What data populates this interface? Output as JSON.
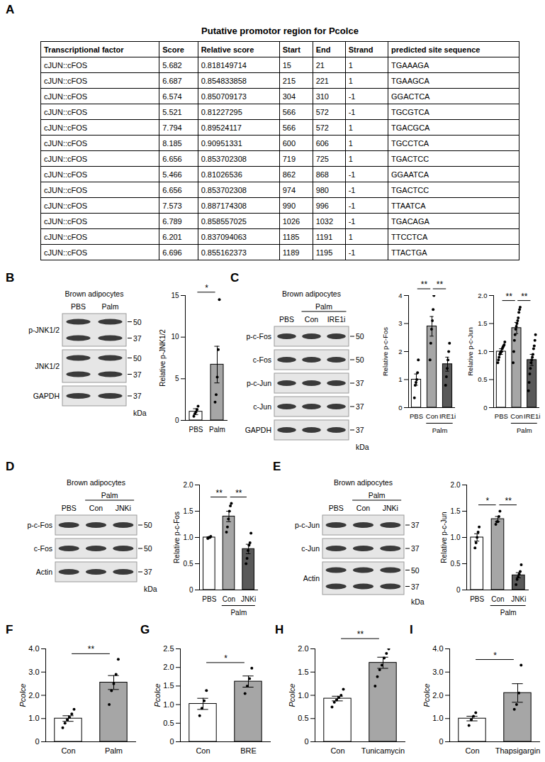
{
  "panel_a": {
    "panel": "A",
    "title": "Putative promotor region for Pcolce",
    "columns": [
      "Transcriptional factor",
      "Score",
      "Relative score",
      "Start",
      "End",
      "Strand",
      "predicted site sequence"
    ],
    "rows": [
      [
        "cJUN::cFOS",
        5.682,
        0.818149714,
        15,
        21,
        1,
        "TGAAAGA"
      ],
      [
        "cJUN::cFOS",
        6.687,
        0.854833858,
        215,
        221,
        1,
        "TGAAGCA"
      ],
      [
        "cJUN::cFOS",
        6.574,
        0.850709173,
        304,
        310,
        -1,
        "GGACTCA"
      ],
      [
        "cJUN::cFOS",
        5.521,
        0.81227295,
        566,
        572,
        -1,
        "TGCGTCA"
      ],
      [
        "cJUN::cFOS",
        7.794,
        0.89524117,
        566,
        572,
        1,
        "TGACGCA"
      ],
      [
        "cJUN::cFOS",
        8.185,
        0.90951331,
        600,
        606,
        1,
        "TGCCTCA"
      ],
      [
        "cJUN::cFOS",
        6.656,
        0.853702308,
        719,
        725,
        1,
        "TGACTCC"
      ],
      [
        "cJUN::cFOS",
        5.466,
        0.81026536,
        862,
        868,
        -1,
        "GGAATCA"
      ],
      [
        "cJUN::cFOS",
        6.656,
        0.853702308,
        974,
        980,
        -1,
        "TGACTCC"
      ],
      [
        "cJUN::cFOS",
        7.573,
        0.887174308,
        990,
        996,
        -1,
        "TTAATCA"
      ],
      [
        "cJUN::cFOS",
        6.789,
        0.858557025,
        1026,
        1032,
        -1,
        "TGACAGA"
      ],
      [
        "cJUN::cFOS",
        6.201,
        0.837094063,
        1185,
        1191,
        1,
        "TTCCTCA"
      ],
      [
        "cJUN::cFOS",
        6.696,
        0.855162373,
        1189,
        1195,
        -1,
        "TTACTGA"
      ]
    ]
  },
  "blots": [
    {
      "panel": "B",
      "cell_label": "Brown adipocytes",
      "lanes": [
        "PBS",
        "Palm"
      ],
      "unit": "kDa",
      "rows": [
        {
          "label": "p-JNK1/2",
          "markers": [
            50,
            37
          ]
        },
        {
          "label": "JNK1/2",
          "markers": [
            50,
            37
          ]
        },
        {
          "label": "GAPDH",
          "markers": [
            37
          ]
        }
      ]
    },
    {
      "panel": "C",
      "cell_label": "Brown adipocytes",
      "lanes": [
        "PBS",
        "Con",
        "IRE1i"
      ],
      "lane_group": {
        "label": "Palm",
        "lanes": [
          "Con",
          "IRE1i"
        ]
      },
      "unit": "kDa",
      "rows": [
        {
          "label": "p-c-Fos",
          "markers": [
            50
          ]
        },
        {
          "label": "c-Fos",
          "markers": [
            50
          ]
        },
        {
          "label": "p-c-Jun",
          "markers": [
            37
          ]
        },
        {
          "label": "c-Jun",
          "markers": [
            37
          ]
        },
        {
          "label": "GAPDH",
          "markers": [
            37
          ]
        }
      ]
    },
    {
      "panel": "D",
      "cell_label": "Brown adipocytes",
      "lanes": [
        "PBS",
        "Con",
        "JNKi"
      ],
      "lane_group": {
        "label": "Palm",
        "lanes": [
          "Con",
          "JNKi"
        ]
      },
      "unit": "kDa",
      "rows": [
        {
          "label": "p-c-Fos",
          "markers": [
            50
          ]
        },
        {
          "label": "c-Fos",
          "markers": [
            50
          ]
        },
        {
          "label": "Actin",
          "markers": [
            37
          ]
        }
      ]
    },
    {
      "panel": "E",
      "cell_label": "Brown adipocytes",
      "lanes": [
        "PBS",
        "Con",
        "JNKi"
      ],
      "lane_group": {
        "label": "Palm",
        "lanes": [
          "Con",
          "JNKi"
        ]
      },
      "unit": "kDa",
      "rows": [
        {
          "label": "p-c-Jun",
          "markers": [
            37
          ]
        },
        {
          "label": "c-Jun",
          "markers": [
            37
          ]
        },
        {
          "label": "Actin",
          "markers": [
            50,
            37
          ]
        }
      ]
    }
  ],
  "chart_data": [
    {
      "type": "bar",
      "ylabel": "Relative p-JNK1/2",
      "categories": [
        "PBS",
        "Palm"
      ],
      "values": [
        1.05,
        6.7
      ],
      "errors": [
        0.35,
        2.2
      ],
      "points": [
        [
          0.5,
          0.8,
          1.0,
          1.3,
          1.7
        ],
        [
          2.2,
          3.1,
          5.2,
          8.5,
          14.5
        ]
      ],
      "colors": [
        "#ffffff",
        "#a6a6a6"
      ],
      "ylim": [
        0,
        15
      ],
      "yticks": [
        0,
        5,
        10,
        15
      ],
      "significance": [
        {
          "from": "PBS",
          "to": "Palm",
          "label": "*"
        }
      ]
    },
    {
      "type": "bar",
      "ylabel": "Relative p-c-Fos",
      "categories": [
        "PBS",
        "Con",
        "IRE1i"
      ],
      "values": [
        1.0,
        2.9,
        1.55
      ],
      "errors": [
        0.2,
        0.35,
        0.25
      ],
      "points": [
        [
          0.35,
          0.8,
          0.9,
          1.0,
          1.25,
          1.7
        ],
        [
          1.7,
          2.3,
          2.8,
          3.1,
          3.5,
          4.0
        ],
        [
          0.8,
          1.1,
          1.4,
          1.7,
          2.0,
          2.3
        ]
      ],
      "colors": [
        "#ffffff",
        "#a6a6a6",
        "#595959"
      ],
      "ylim": [
        0,
        4
      ],
      "yticks": [
        0,
        1,
        2,
        3,
        4
      ],
      "group_label": {
        "label": "Palm",
        "categories": [
          "Con",
          "IRE1i"
        ]
      },
      "significance": [
        {
          "from": "PBS",
          "to": "Con",
          "label": "**"
        },
        {
          "from": "Con",
          "to": "IRE1i",
          "label": "**"
        }
      ]
    },
    {
      "type": "bar",
      "ylabel": "Relative p-c-Jun",
      "categories": [
        "PBS",
        "Con",
        "IRE1i"
      ],
      "values": [
        1.0,
        1.42,
        0.85
      ],
      "errors": [
        0.05,
        0.1,
        0.1
      ],
      "points": [
        [
          0.8,
          0.85,
          0.9,
          0.95,
          0.98,
          1.0,
          1.0,
          1.05,
          1.08,
          1.1,
          1.12,
          1.17
        ],
        [
          0.8,
          1.0,
          1.2,
          1.3,
          1.4,
          1.45,
          1.5,
          1.55,
          1.6,
          1.7,
          1.75,
          1.79
        ],
        [
          0.3,
          0.45,
          0.6,
          0.7,
          0.8,
          0.85,
          0.9,
          0.95,
          1.05,
          1.1,
          1.2,
          1.3
        ]
      ],
      "colors": [
        "#ffffff",
        "#a6a6a6",
        "#595959"
      ],
      "ylim": [
        0,
        2
      ],
      "yticks": [
        0,
        0.5,
        {
          "value": 1,
          "label": "1.0"
        },
        1.5,
        {
          "value": 2,
          "label": "2.0"
        }
      ],
      "group_label": {
        "label": "Palm",
        "categories": [
          "Con",
          "IRE1i"
        ]
      },
      "significance": [
        {
          "from": "PBS",
          "to": "Con",
          "label": "**"
        },
        {
          "from": "Con",
          "to": "IRE1i",
          "label": "**"
        }
      ]
    },
    {
      "type": "bar",
      "ylabel": "Relative p-c-Fos",
      "categories": [
        "PBS",
        "Con",
        "JNKi"
      ],
      "values": [
        1.0,
        1.4,
        0.78
      ],
      "errors": [
        0.01,
        0.1,
        0.09
      ],
      "points": [
        [
          0.98,
          1.0,
          1.0,
          1.02
        ],
        [
          1.1,
          1.2,
          1.35,
          1.5,
          1.6,
          1.65
        ],
        [
          0.5,
          0.6,
          0.75,
          0.85,
          0.9,
          1.08
        ]
      ],
      "colors": [
        "#ffffff",
        "#a6a6a6",
        "#595959"
      ],
      "ylim": [
        0,
        2
      ],
      "yticks": [
        0,
        0.5,
        {
          "value": 1,
          "label": "1.0"
        },
        1.5,
        {
          "value": 2,
          "label": "2.0"
        }
      ],
      "group_label": {
        "label": "Palm",
        "categories": [
          "Con",
          "JNKi"
        ]
      },
      "significance": [
        {
          "from": "PBS",
          "to": "Con",
          "label": "**"
        },
        {
          "from": "Con",
          "to": "JNKi",
          "label": "**"
        }
      ]
    },
    {
      "type": "bar",
      "ylabel": "Relative p-c-Jun",
      "categories": [
        "PBS",
        "Con",
        "JNKi"
      ],
      "values": [
        1.0,
        1.35,
        0.28
      ],
      "errors": [
        0.07,
        0.05,
        0.05
      ],
      "points": [
        [
          0.8,
          0.9,
          1.0,
          1.1,
          1.2
        ],
        [
          1.25,
          1.3,
          1.3,
          1.4,
          1.5
        ],
        [
          0.1,
          0.2,
          0.25,
          0.3,
          0.35,
          0.48
        ]
      ],
      "colors": [
        "#ffffff",
        "#a6a6a6",
        "#595959"
      ],
      "ylim": [
        0,
        2
      ],
      "yticks": [
        0,
        0.5,
        {
          "value": 1,
          "label": "1.0"
        },
        1.5,
        {
          "value": 2,
          "label": "2.0"
        }
      ],
      "group_label": {
        "label": "Palm",
        "categories": [
          "Con",
          "JNKi"
        ]
      },
      "significance": [
        {
          "from": "PBS",
          "to": "Con",
          "label": "*"
        },
        {
          "from": "Con",
          "to": "JNKi",
          "label": "**"
        }
      ]
    },
    {
      "panel": "F",
      "type": "bar",
      "ylabel": "Pcolce",
      "categories": [
        "Con",
        "Palm"
      ],
      "values": [
        1.0,
        2.55
      ],
      "errors": [
        0.12,
        0.3
      ],
      "points": [
        [
          0.6,
          0.8,
          0.95,
          1.05,
          1.2,
          1.4
        ],
        [
          1.6,
          2.2,
          2.5,
          2.9,
          3.55
        ]
      ],
      "colors": [
        "#ffffff",
        "#a6a6a6"
      ],
      "ylim": [
        0,
        4
      ],
      "yticks": [
        0,
        {
          "value": 1,
          "label": "1.0"
        },
        {
          "value": 2,
          "label": "2.0"
        },
        {
          "value": 3,
          "label": "3.0"
        },
        {
          "value": 4,
          "label": "4.0"
        }
      ],
      "significance": [
        {
          "from": "Con",
          "to": "Palm",
          "label": "**"
        }
      ]
    },
    {
      "panel": "G",
      "type": "bar",
      "ylabel": "Pcolce",
      "categories": [
        "Con",
        "BRE"
      ],
      "values": [
        1.02,
        1.62
      ],
      "errors": [
        0.15,
        0.15
      ],
      "points": [
        [
          0.7,
          0.9,
          1.1,
          1.38
        ],
        [
          1.3,
          1.5,
          1.7,
          1.98
        ]
      ],
      "colors": [
        "#ffffff",
        "#a6a6a6"
      ],
      "ylim": [
        0,
        2.5
      ],
      "yticks": [
        0,
        0.5,
        {
          "value": 1,
          "label": "1.0"
        },
        1.5,
        {
          "value": 2,
          "label": "2.0"
        },
        2.5
      ],
      "significance": [
        {
          "from": "Con",
          "to": "BRE",
          "label": "*"
        }
      ]
    },
    {
      "panel": "H",
      "type": "bar",
      "ylabel": "Pcolce",
      "categories": [
        "Con",
        "Tunicamycin"
      ],
      "values": [
        0.93,
        1.7
      ],
      "errors": [
        0.05,
        0.12
      ],
      "points": [
        [
          0.75,
          0.85,
          0.9,
          0.95,
          1.0,
          1.13
        ],
        [
          1.2,
          1.4,
          1.55,
          1.65,
          1.8,
          1.9,
          2.0,
          2.1
        ]
      ],
      "colors": [
        "#ffffff",
        "#a6a6a6"
      ],
      "ylim": [
        0,
        2
      ],
      "yticks": [
        0,
        0.5,
        {
          "value": 1,
          "label": "1.0"
        },
        1.5,
        {
          "value": 2,
          "label": "2.0"
        }
      ],
      "significance": [
        {
          "from": "Con",
          "to": "Tunicamycin",
          "label": "**"
        }
      ]
    },
    {
      "panel": "I",
      "type": "bar",
      "ylabel": "Pcolce",
      "categories": [
        "Con",
        "Thapsigargin"
      ],
      "values": [
        1.0,
        2.1
      ],
      "errors": [
        0.1,
        0.4
      ],
      "points": [
        [
          0.7,
          0.95,
          1.1,
          1.25
        ],
        [
          1.4,
          1.6,
          2.1,
          3.3
        ]
      ],
      "colors": [
        "#ffffff",
        "#a6a6a6"
      ],
      "ylim": [
        0,
        4
      ],
      "yticks": [
        0,
        {
          "value": 1,
          "label": "1.0"
        },
        {
          "value": 2,
          "label": "2.0"
        },
        {
          "value": 3,
          "label": "3.0"
        },
        {
          "value": 4,
          "label": "4.0"
        }
      ],
      "significance": [
        {
          "from": "Con",
          "to": "Thapsigargin",
          "label": "*"
        }
      ]
    }
  ]
}
